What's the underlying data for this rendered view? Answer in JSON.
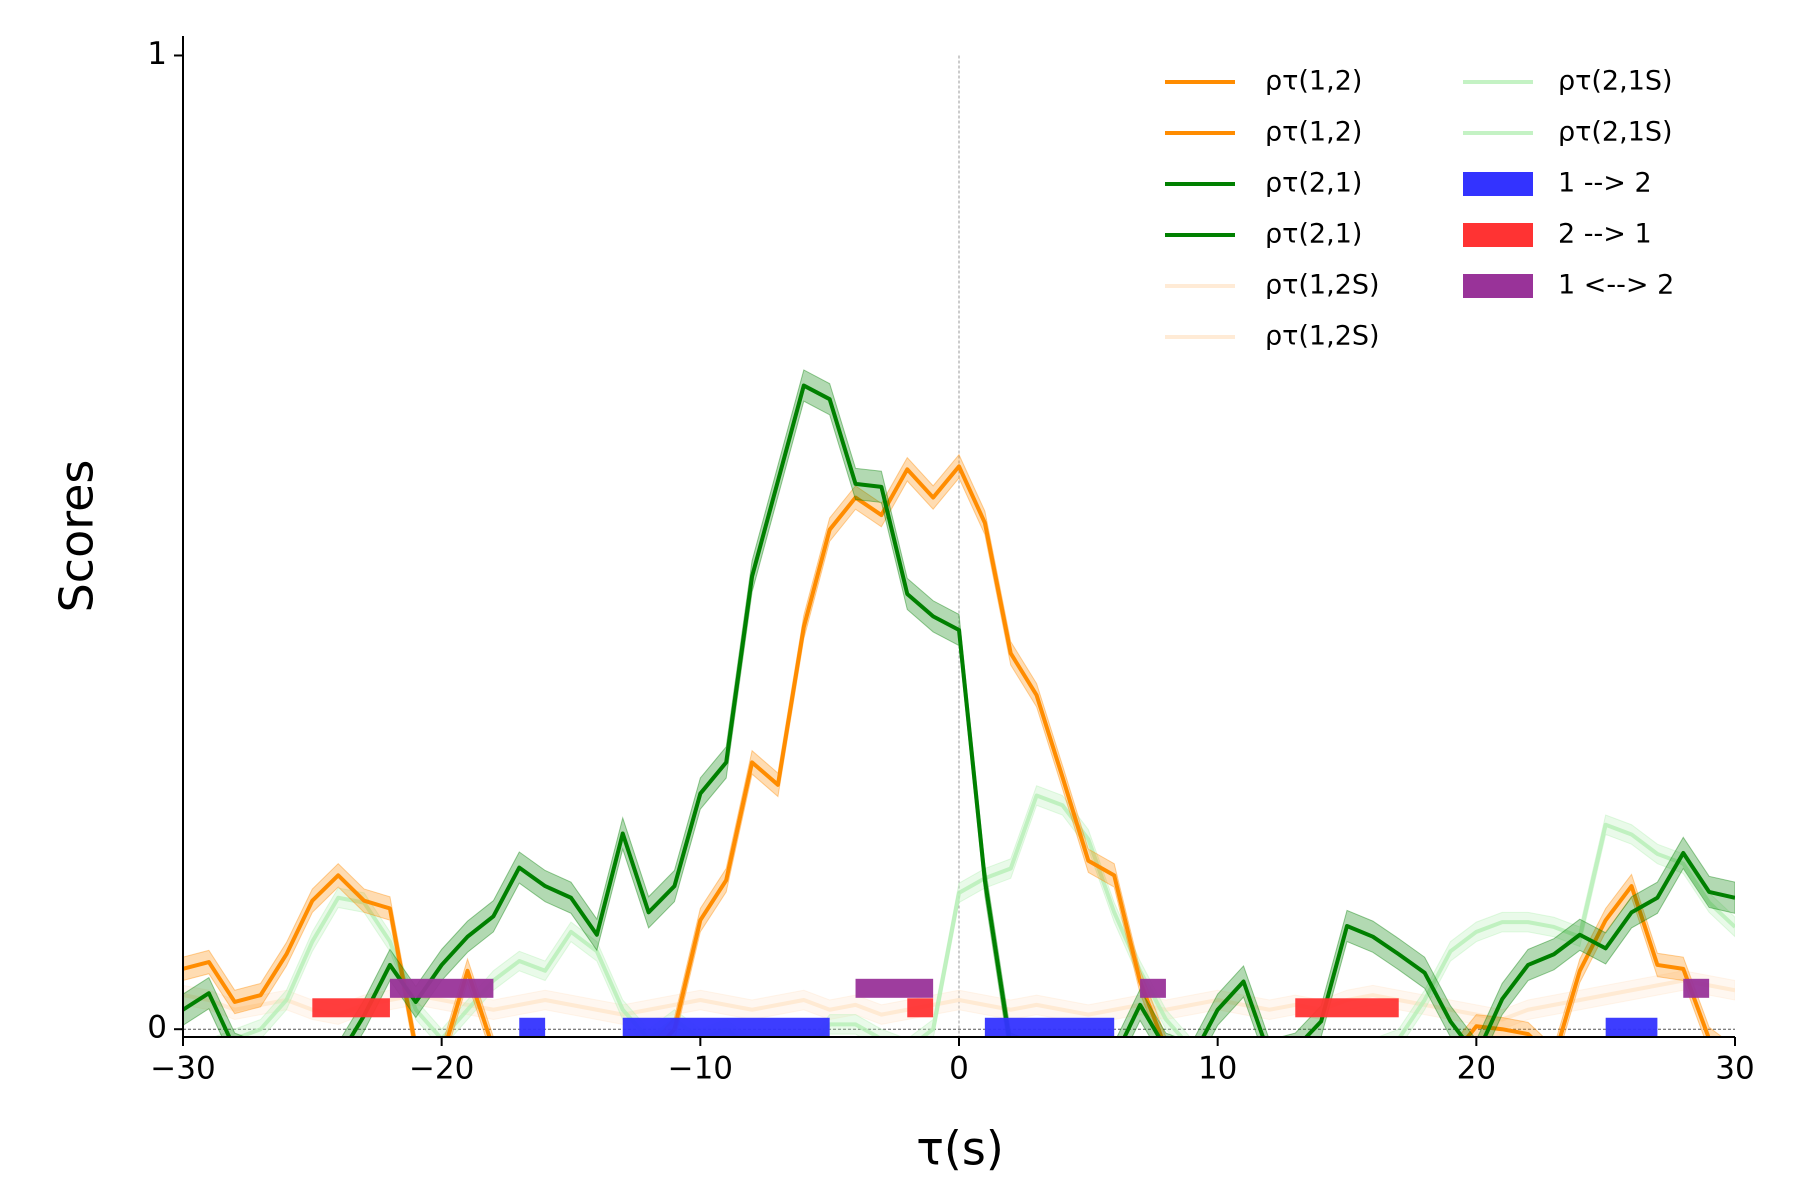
{
  "chart_data": {
    "type": "line",
    "xlabel": "τ(s)",
    "ylabel": "Scores",
    "x": [
      -30,
      -29,
      -28,
      -27,
      -26,
      -25,
      -24,
      -23,
      -22,
      -21,
      -20,
      -19,
      -18,
      -17,
      -16,
      -15,
      -14,
      -13,
      -12,
      -11,
      -10,
      -9,
      -8,
      -7,
      -6,
      -5,
      -4,
      -3,
      -2,
      -1,
      0,
      1,
      2,
      3,
      4,
      5,
      6,
      7,
      8,
      9,
      10,
      11,
      12,
      13,
      14,
      15,
      16,
      17,
      18,
      19,
      20,
      21,
      22,
      23,
      24,
      25,
      26,
      27,
      28,
      29,
      30
    ],
    "xlim": [
      -30,
      30
    ],
    "xticks": [
      {
        "value": -30,
        "label": "−30"
      },
      {
        "value": -20,
        "label": "−20"
      },
      {
        "value": -10,
        "label": "−10"
      },
      0,
      10,
      20,
      30
    ],
    "ylim": [
      -0.008,
      1.02
    ],
    "yticks": [
      0,
      1
    ],
    "zero_lines": true,
    "legend": "upper right",
    "series": [
      {
        "name": "ρτ(1,2)",
        "color": "#ff8c00",
        "spread": 0.012,
        "values": [
          0.062,
          0.069,
          0.028,
          0.035,
          0.077,
          0.132,
          0.158,
          0.132,
          0.124,
          -0.02,
          -0.03,
          0.06,
          -0.02,
          -0.03,
          -0.03,
          -0.03,
          -0.03,
          -0.03,
          -0.03,
          0,
          0.112,
          0.153,
          0.274,
          0.251,
          0.413,
          0.513,
          0.546,
          0.528,
          0.575,
          0.546,
          0.578,
          0.52,
          0.386,
          0.343,
          0.259,
          0.173,
          0.158,
          0.049,
          -0.02,
          -0.03,
          -0.03,
          -0.03,
          -0.03,
          -0.03,
          -0.03,
          -0.03,
          -0.03,
          -0.03,
          -0.03,
          -0.03,
          0.003,
          0,
          -0.005,
          -0.03,
          0.06,
          0.112,
          0.147,
          0.066,
          0.062,
          -0.01,
          -0.03
        ]
      },
      {
        "name": "ρτ(2,1)",
        "color": "#008000",
        "spread": 0.016,
        "values": [
          0.02,
          0.037,
          -0.02,
          -0.03,
          -0.03,
          -0.03,
          -0.03,
          0.014,
          0.066,
          0.028,
          0.066,
          0.095,
          0.116,
          0.166,
          0.147,
          0.135,
          0.097,
          0.201,
          0.12,
          0.147,
          0.242,
          0.274,
          0.465,
          0.563,
          0.661,
          0.647,
          0.56,
          0.557,
          0.447,
          0.424,
          0.41,
          0.153,
          -0.02,
          -0.03,
          -0.03,
          -0.03,
          -0.03,
          0.025,
          -0.02,
          -0.03,
          0.02,
          0.049,
          -0.027,
          -0.02,
          0.008,
          0.106,
          0.095,
          0.077,
          0.058,
          0.008,
          -0.027,
          0.031,
          0.066,
          0.077,
          0.097,
          0.083,
          0.12,
          0.135,
          0.181,
          0.141,
          0.135
        ]
      },
      {
        "name": "ρτ(1,2S)",
        "color": "#ffe6cc",
        "spread": 0.01,
        "values": [
          0.035,
          0.03,
          0.02,
          0.025,
          0.03,
          0.02,
          0.015,
          0.025,
          0.03,
          0.035,
          0.03,
          0.025,
          0.02,
          0.025,
          0.03,
          0.025,
          0.02,
          0.015,
          0.02,
          0.025,
          0.03,
          0.025,
          0.02,
          0.025,
          0.03,
          0.02,
          0.025,
          0.015,
          0.02,
          0.025,
          0.03,
          0.025,
          0.02,
          0.025,
          0.02,
          0.015,
          0.02,
          0.025,
          0.02,
          0.025,
          0.03,
          0.025,
          0.02,
          0.025,
          0.02,
          0.03,
          0.035,
          0.03,
          0.025,
          0.02,
          0.015,
          0.01,
          0.02,
          0.025,
          0.03,
          0.035,
          0.04,
          0.045,
          0.05,
          0.045,
          0.04
        ]
      },
      {
        "name": "ρτ(2,1S)",
        "color": "#b5efb5",
        "spread": 0.01,
        "values": [
          -0.02,
          -0.02,
          -0.01,
          0,
          0.03,
          0.09,
          0.135,
          0.13,
          0.09,
          0.02,
          -0.01,
          0.02,
          0.05,
          0.07,
          0.06,
          0.1,
          0.08,
          0.02,
          -0.01,
          0.01,
          -0.01,
          0,
          -0.02,
          -0.03,
          -0.03,
          0.005,
          0.005,
          -0.01,
          -0.02,
          0,
          0.14,
          0.155,
          0.165,
          0.24,
          0.23,
          0.195,
          0.12,
          0.06,
          0.01,
          -0.02,
          -0.03,
          -0.03,
          -0.03,
          -0.03,
          -0.03,
          -0.03,
          -0.02,
          -0.01,
          0.03,
          0.08,
          0.1,
          0.11,
          0.11,
          0.105,
          0.095,
          0.21,
          0.2,
          0.18,
          0.17,
          0.13,
          0.105
        ]
      }
    ],
    "intervals": [
      {
        "name": "1 --> 2",
        "color": "#3333ff",
        "ranges": [
          [
            -17,
            -16
          ],
          [
            -13,
            -5
          ],
          [
            1,
            6
          ],
          [
            25,
            27
          ]
        ]
      },
      {
        "name": "2 --> 1",
        "color": "#ff3333",
        "ranges": [
          [
            -25,
            -22
          ],
          [
            -2,
            -1
          ],
          [
            13,
            17
          ]
        ]
      },
      {
        "name": "1 <--> 2",
        "color": "#993399",
        "ranges": [
          [
            -22,
            -18
          ],
          [
            -4,
            -1
          ],
          [
            7,
            8
          ],
          [
            28,
            29
          ]
        ]
      }
    ]
  }
}
